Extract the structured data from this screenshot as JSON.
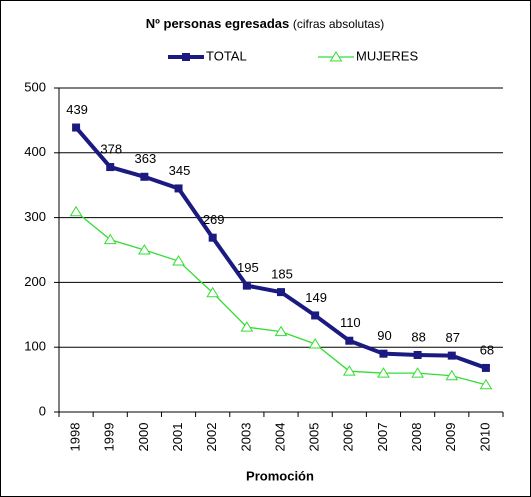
{
  "chart_data": {
    "type": "line",
    "title": "Nº personas egresadas",
    "subtitle": "(cifras absolutas)",
    "x_label": "Promoción",
    "categories": [
      "1998",
      "1999",
      "2000",
      "2001",
      "2002",
      "2003",
      "2004",
      "2005",
      "2006",
      "2007",
      "2008",
      "2009",
      "2010"
    ],
    "series": [
      {
        "name": "TOTAL",
        "color": "#1a1a80",
        "values": [
          439,
          378,
          363,
          345,
          269,
          195,
          185,
          149,
          110,
          90,
          88,
          87,
          68
        ]
      },
      {
        "name": "MUJERES",
        "color": "#33dd33",
        "values": [
          309,
          266,
          250,
          233,
          184,
          131,
          124,
          105,
          63,
          60,
          60,
          56,
          42
        ]
      }
    ],
    "ylim": [
      0,
      500
    ],
    "yticks": [
      0,
      100,
      200,
      300,
      400,
      500
    ],
    "grid": true,
    "legend": "top"
  }
}
